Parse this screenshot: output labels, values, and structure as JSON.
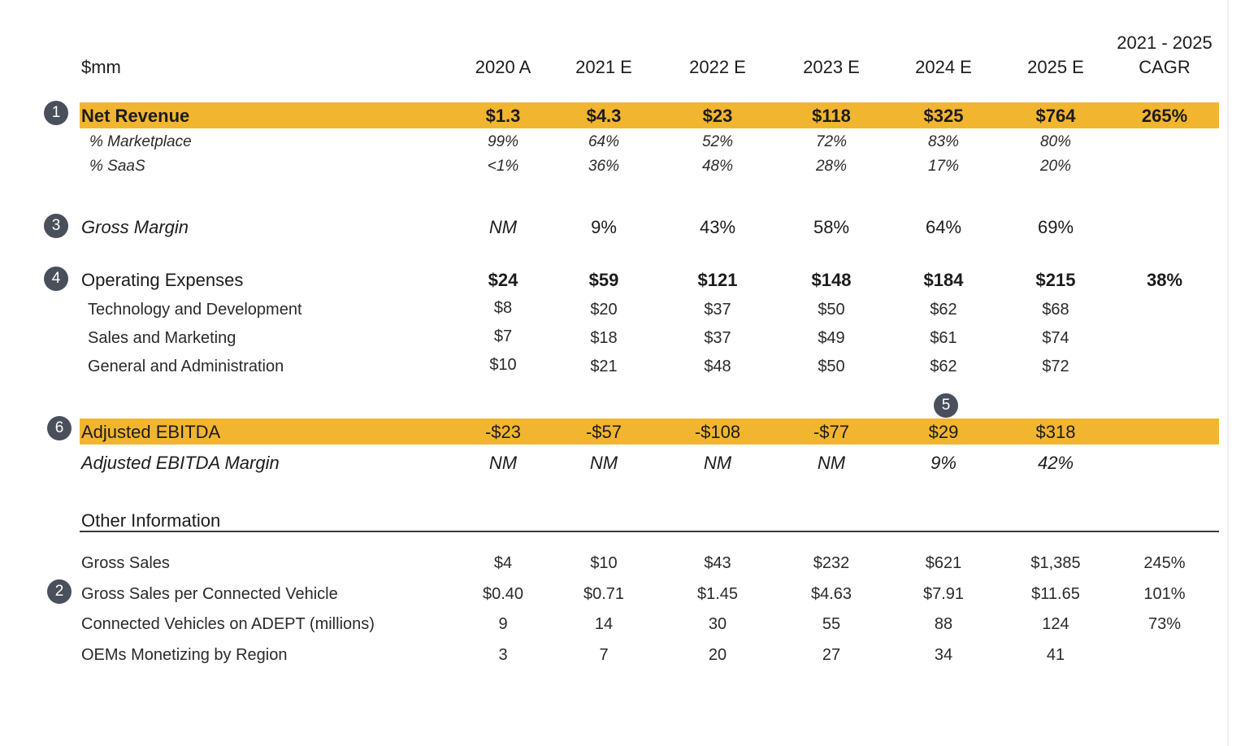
{
  "header": {
    "unit_label": "$mm",
    "columns": [
      "2020 A",
      "2021 E",
      "2022 E",
      "2023 E",
      "2024 E",
      "2025 E"
    ],
    "cagr_label_line1": "2021 - 2025",
    "cagr_label_line2": "CAGR"
  },
  "badges": [
    "1",
    "3",
    "4",
    "5",
    "6",
    "2"
  ],
  "rows": {
    "net_revenue": {
      "label": "Net Revenue",
      "values": [
        "$1.3",
        "$4.3",
        "$23",
        "$118",
        "$325",
        "$764"
      ],
      "cagr": "265%"
    },
    "pct_marketplace": {
      "label": "% Marketplace",
      "values": [
        "99%",
        "64%",
        "52%",
        "72%",
        "83%",
        "80%"
      ]
    },
    "pct_saas": {
      "label": "% SaaS",
      "values": [
        "<1%",
        "36%",
        "48%",
        "28%",
        "17%",
        "20%"
      ]
    },
    "gross_margin": {
      "label": "Gross Margin",
      "values": [
        "NM",
        "9%",
        "43%",
        "58%",
        "64%",
        "69%"
      ]
    },
    "operating_expenses": {
      "label": "Operating Expenses",
      "values": [
        "$24",
        "$59",
        "$121",
        "$148",
        "$184",
        "$215"
      ],
      "cagr": "38%"
    },
    "tech_dev": {
      "label": "Technology and Development",
      "values": [
        "$8",
        "$20",
        "$37",
        "$50",
        "$62",
        "$68"
      ]
    },
    "sales_marketing": {
      "label": "Sales and Marketing",
      "values": [
        "$7",
        "$18",
        "$37",
        "$49",
        "$61",
        "$74"
      ]
    },
    "gen_admin": {
      "label": "General and Administration",
      "values": [
        "$10",
        "$21",
        "$48",
        "$50",
        "$62",
        "$72"
      ]
    },
    "adj_ebitda": {
      "label": "Adjusted EBITDA",
      "values": [
        "-$23",
        "-$57",
        "-$108",
        "-$77",
        "$29",
        "$318"
      ]
    },
    "adj_ebitda_margin": {
      "label": "Adjusted EBITDA Margin",
      "values": [
        "NM",
        "NM",
        "NM",
        "NM",
        "9%",
        "42%"
      ]
    },
    "other_info": {
      "label": "Other Information"
    },
    "gross_sales": {
      "label": "Gross Sales",
      "values": [
        "$4",
        "$10",
        "$43",
        "$232",
        "$621",
        "$1,385"
      ],
      "cagr": "245%"
    },
    "gross_sales_per_vehicle": {
      "label": "Gross Sales per Connected Vehicle",
      "values": [
        "$0.40",
        "$0.71",
        "$1.45",
        "$4.63",
        "$7.91",
        "$11.65"
      ],
      "cagr": "101%"
    },
    "connected_vehicles": {
      "label": "Connected Vehicles on ADEPT (millions)",
      "values": [
        "9",
        "14",
        "30",
        "55",
        "88",
        "124"
      ],
      "cagr": "73%"
    },
    "oems_monetizing": {
      "label": "OEMs Monetizing by Region",
      "values": [
        "3",
        "7",
        "20",
        "27",
        "34",
        "41"
      ]
    }
  },
  "colors": {
    "highlight": "#f2b52f",
    "badge": "#4a4f5c",
    "text": "#1c1c1c"
  }
}
